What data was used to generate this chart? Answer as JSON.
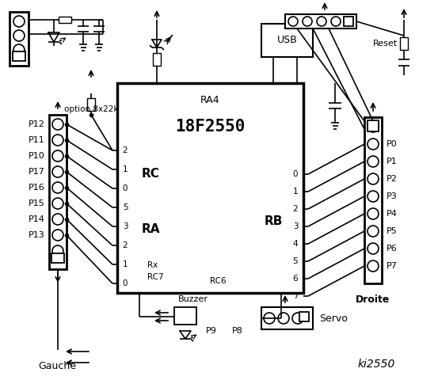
{
  "bg_color": "#ffffff",
  "title": "ki2550",
  "chip_label": "18F2550",
  "chip_sublabel": "RA4",
  "rc_label": "RC",
  "ra_label": "RA",
  "rb_label": "RB",
  "left_pin_nums": [
    "2",
    "1",
    "0",
    "5",
    "3",
    "2",
    "1",
    "0"
  ],
  "rb_pin_nums": [
    "0",
    "1",
    "2",
    "3",
    "4",
    "5",
    "6",
    "7"
  ],
  "left_labels": [
    "P12",
    "P11",
    "P10",
    "P17",
    "P16",
    "P15",
    "P14",
    "P13"
  ],
  "right_labels": [
    "P0",
    "P1",
    "P2",
    "P3",
    "P4",
    "P5",
    "P6",
    "P7"
  ],
  "option_label": "option 8x22k",
  "reset_label": "Reset",
  "usb_label": "USB",
  "buzzer_label": "Buzzer",
  "gauche_label": "Gauche",
  "droite_label": "Droite",
  "servo_label": "Servo",
  "p9_label": "P9",
  "p8_label": "P8",
  "rx_label": "Rx",
  "rc7_label": "RC7",
  "rc6_label": "RC6"
}
